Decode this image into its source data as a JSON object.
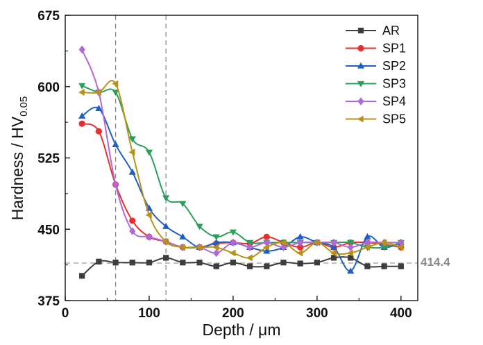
{
  "chart_data": {
    "type": "line",
    "title": "",
    "xlabel": "Depth / μm",
    "ylabel_main": "Hardness / HV",
    "ylabel_sub": "0.05",
    "xlim": [
      0,
      420
    ],
    "ylim": [
      375,
      675
    ],
    "xticks": [
      0,
      100,
      200,
      300,
      400
    ],
    "yticks": [
      375,
      450,
      525,
      600,
      675
    ],
    "grid": false,
    "legend_position": "top-right",
    "vertical_reference_lines": [
      60,
      120
    ],
    "horizontal_reference": {
      "value": 414.4,
      "label": "414.4",
      "color": "#999999"
    },
    "series": [
      {
        "name": "AR",
        "color": "#3d3d3d",
        "marker": "square",
        "x": [
          20,
          40,
          60,
          80,
          100,
          120,
          140,
          160,
          180,
          200,
          220,
          240,
          260,
          280,
          300,
          320,
          340,
          360,
          380,
          400
        ],
        "y": [
          401,
          416,
          415,
          415,
          415,
          420,
          415,
          415,
          411,
          415,
          411,
          411,
          415,
          414,
          415,
          420,
          420,
          411,
          411,
          411
        ]
      },
      {
        "name": "SP1",
        "color": "#e5312d",
        "marker": "circle",
        "x": [
          20,
          40,
          60,
          80,
          100,
          120,
          140,
          160,
          180,
          200,
          220,
          240,
          260,
          280,
          300,
          320,
          340,
          360,
          380,
          400
        ],
        "y": [
          561,
          553,
          497,
          459,
          442,
          437,
          431,
          431,
          435,
          436,
          435,
          442,
          436,
          431,
          436,
          431,
          436,
          436,
          434,
          431
        ]
      },
      {
        "name": "SP2",
        "color": "#1f5fc2",
        "marker": "triangle-up",
        "x": [
          20,
          40,
          60,
          80,
          100,
          120,
          140,
          160,
          180,
          200,
          220,
          240,
          260,
          280,
          300,
          320,
          340,
          360,
          380,
          400
        ],
        "y": [
          569,
          577,
          539,
          510,
          472,
          453,
          442,
          431,
          436,
          436,
          431,
          427,
          431,
          442,
          436,
          431,
          406,
          442,
          431,
          436
        ]
      },
      {
        "name": "SP3",
        "color": "#2a9e5c",
        "marker": "triangle-down",
        "x": [
          20,
          40,
          60,
          80,
          100,
          120,
          140,
          160,
          180,
          200,
          220,
          240,
          260,
          280,
          300,
          320,
          340,
          360,
          380,
          400
        ],
        "y": [
          601,
          594,
          594,
          545,
          531,
          483,
          477,
          453,
          442,
          447,
          436,
          436,
          436,
          436,
          436,
          436,
          436,
          431,
          431,
          436
        ]
      },
      {
        "name": "SP4",
        "color": "#b067d8",
        "marker": "diamond",
        "x": [
          20,
          40,
          60,
          80,
          100,
          120,
          140,
          160,
          180,
          200,
          220,
          240,
          260,
          280,
          300,
          320,
          340,
          360,
          380,
          400
        ],
        "y": [
          639,
          594,
          497,
          448,
          442,
          437,
          431,
          431,
          425,
          436,
          431,
          436,
          431,
          436,
          436,
          436,
          431,
          436,
          436,
          436
        ]
      },
      {
        "name": "SP5",
        "color": "#b89214",
        "marker": "triangle-left",
        "x": [
          20,
          40,
          60,
          80,
          100,
          120,
          140,
          160,
          180,
          200,
          220,
          240,
          260,
          280,
          300,
          320,
          340,
          360,
          380,
          400
        ],
        "y": [
          594,
          594,
          603,
          531,
          465,
          437,
          431,
          431,
          431,
          425,
          420,
          431,
          436,
          425,
          436,
          425,
          425,
          431,
          436,
          431
        ]
      }
    ]
  }
}
